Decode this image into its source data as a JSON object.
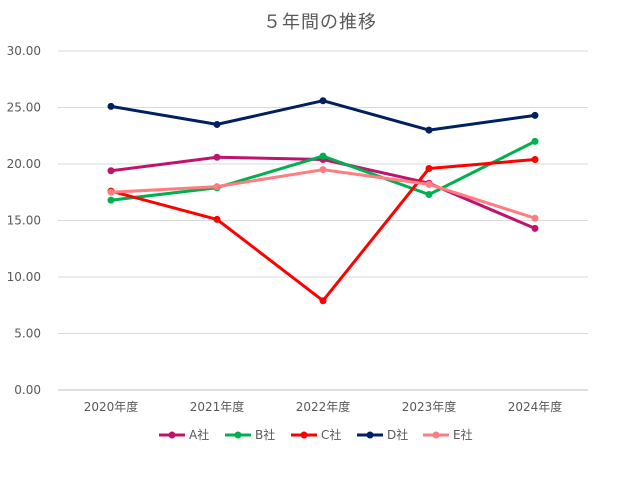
{
  "chart_data": {
    "type": "line",
    "title": "５年間の推移",
    "xlabel": "",
    "ylabel": "",
    "categories": [
      "2020年度",
      "2021年度",
      "2022年度",
      "2023年度",
      "2024年度"
    ],
    "ylim": [
      0,
      30
    ],
    "y_ticks": [
      "0.00",
      "5.00",
      "10.00",
      "15.00",
      "20.00",
      "25.00",
      "30.00"
    ],
    "y_tick_values": [
      0,
      5,
      10,
      15,
      20,
      25,
      30
    ],
    "grid": "horizontal",
    "legend_position": "bottom",
    "series": [
      {
        "name": "A社",
        "color": "#c0136e",
        "values": [
          19.4,
          20.6,
          20.4,
          18.3,
          14.3
        ]
      },
      {
        "name": "B社",
        "color": "#00b050",
        "values": [
          16.8,
          17.9,
          20.7,
          17.3,
          22.0
        ]
      },
      {
        "name": "C社",
        "color": "#ff0000",
        "values": [
          17.6,
          15.1,
          7.9,
          19.6,
          20.4
        ]
      },
      {
        "name": "D社",
        "color": "#002060",
        "values": [
          25.1,
          23.5,
          25.6,
          23.0,
          24.3
        ]
      },
      {
        "name": "E社",
        "color": "#ff7c80",
        "values": [
          17.5,
          18.0,
          19.5,
          18.2,
          15.2
        ]
      }
    ]
  }
}
